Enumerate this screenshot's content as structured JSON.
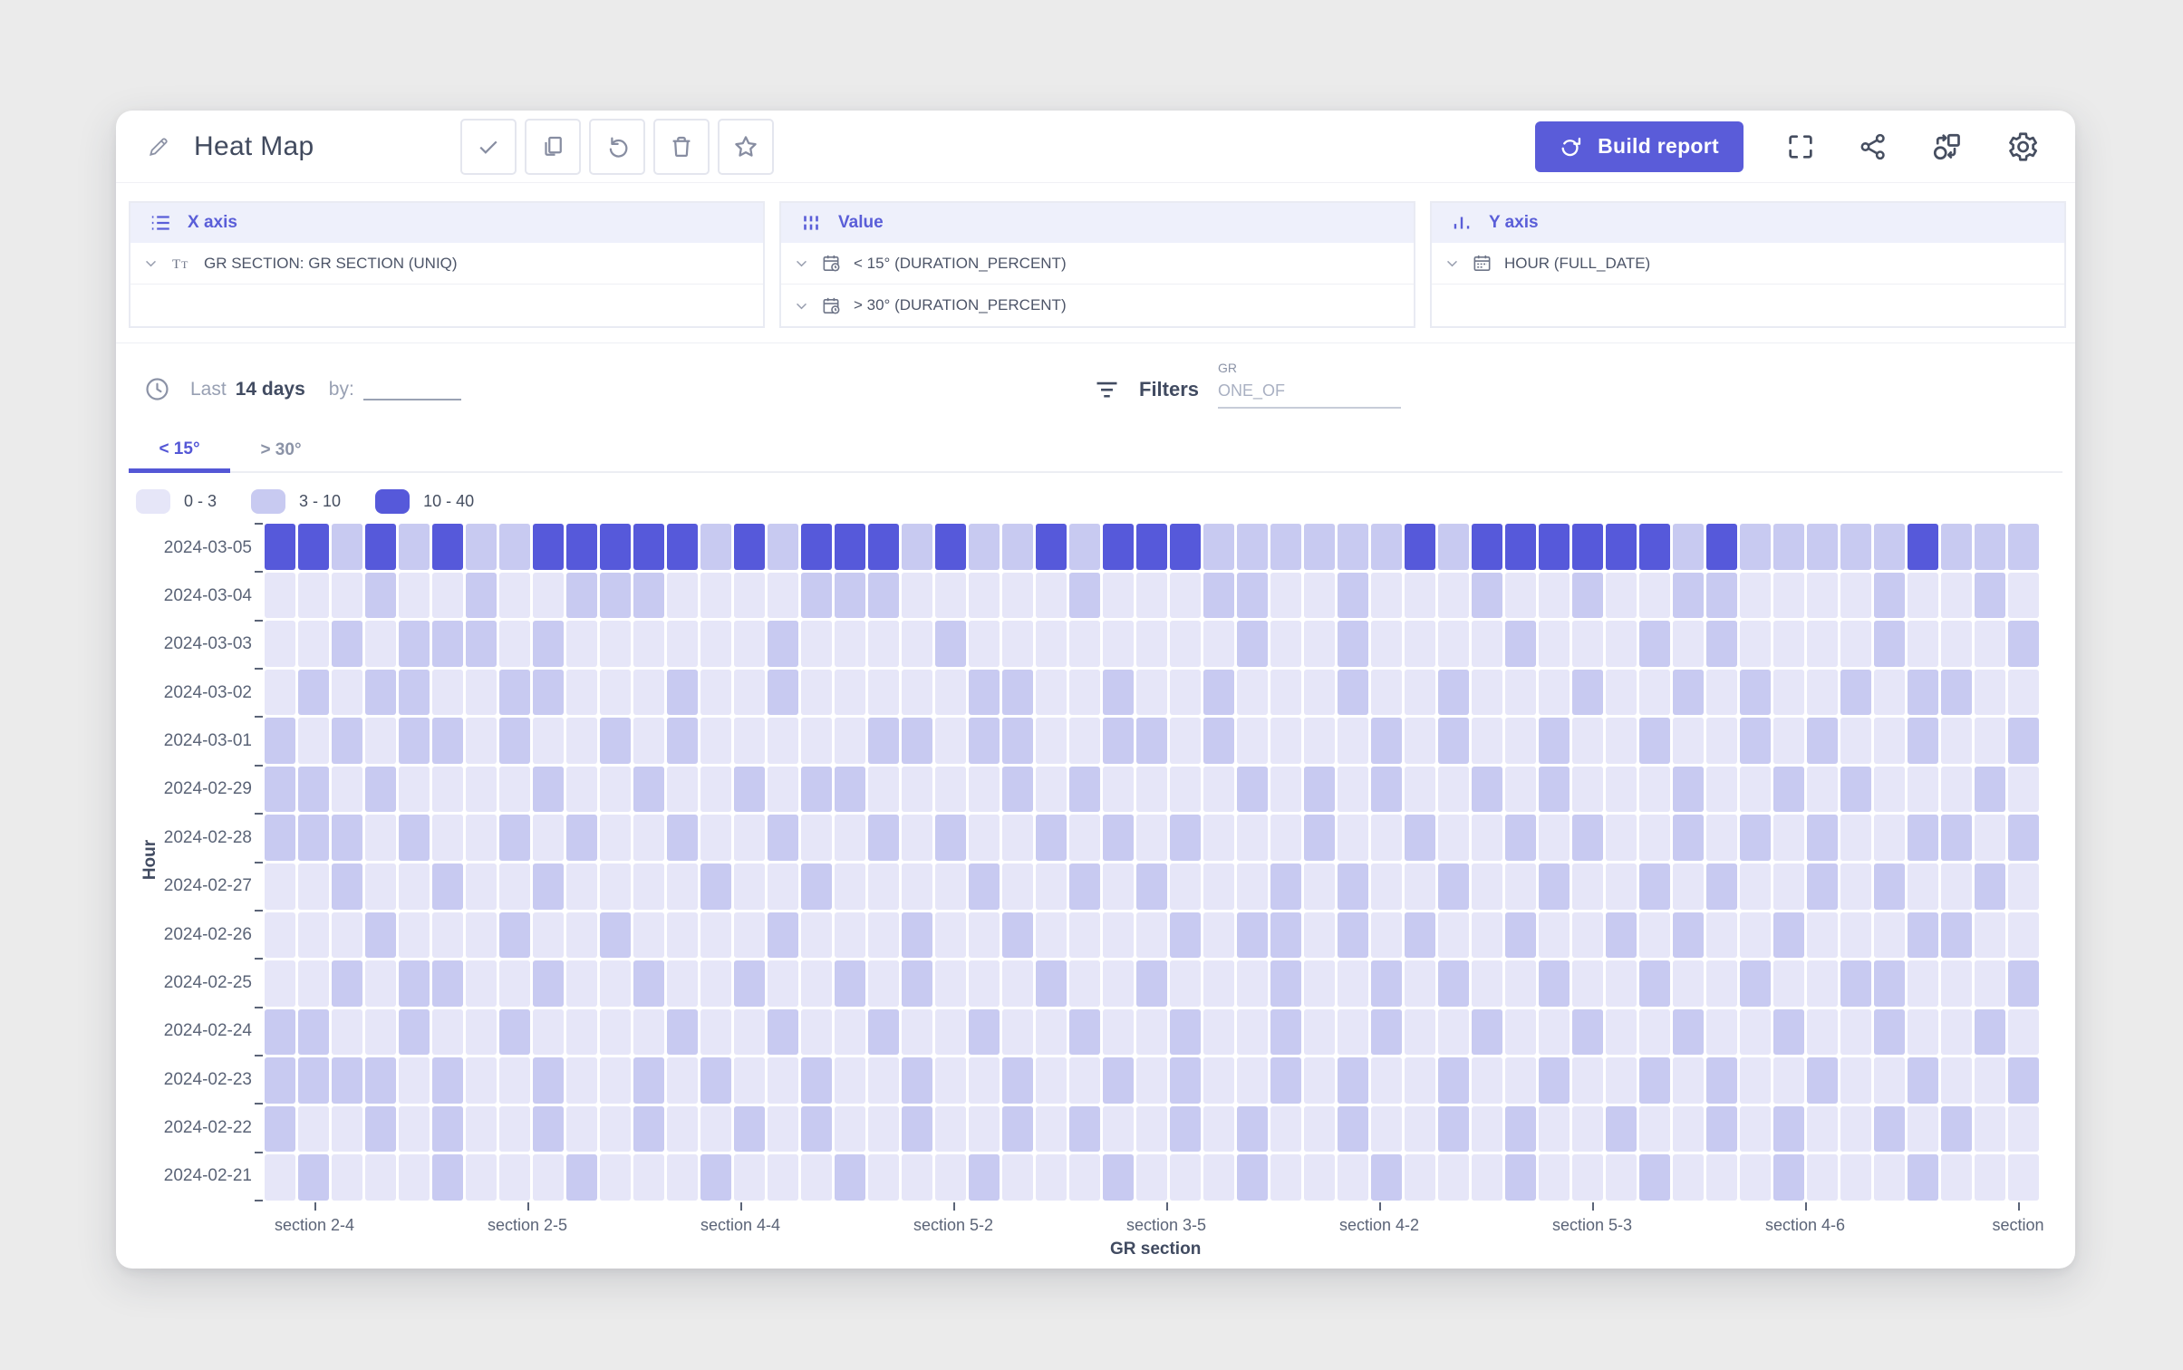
{
  "header": {
    "title": "Heat Map",
    "build_report_label": "Build report",
    "toolbar_icons": [
      "check-icon",
      "copy-icon",
      "undo-icon",
      "trash-icon",
      "star-icon"
    ],
    "right_icons": [
      "fullscreen-icon",
      "share-icon",
      "flow-icon",
      "gear-icon"
    ],
    "accent_color": "#5a5cd9"
  },
  "panels": {
    "x_axis": {
      "title": "X axis",
      "items": [
        {
          "label": "GR SECTION: GR SECTION (UNIQ)"
        }
      ]
    },
    "value": {
      "title": "Value",
      "items": [
        {
          "label": "< 15° (DURATION_PERCENT)"
        },
        {
          "label": "> 30° (DURATION_PERCENT)"
        }
      ]
    },
    "y_axis": {
      "title": "Y axis",
      "items": [
        {
          "label": "HOUR (FULL_DATE)"
        }
      ]
    }
  },
  "controls": {
    "period_prefix": "Last",
    "period_value": "14 days",
    "by_label": "by:",
    "filters_label": "Filters",
    "filter_field": {
      "label": "GR",
      "value": "ONE_OF"
    }
  },
  "tabs": [
    {
      "label": "< 15°",
      "active": true
    },
    {
      "label": "> 30°",
      "active": false
    }
  ],
  "chart_data": {
    "type": "heatmap",
    "title": "",
    "xlabel": "GR section",
    "ylabel": "Hour",
    "legend": [
      {
        "label": "0 - 3",
        "color": "#e6e6f8"
      },
      {
        "label": "3 - 10",
        "color": "#c8caf1"
      },
      {
        "label": "10 - 40",
        "color": "#5659da"
      }
    ],
    "x_tick_labels": [
      "section 2-4",
      "section 2-5",
      "section 4-4",
      "section 5-2",
      "section 3-5",
      "section 4-2",
      "section 5-3",
      "section 4-6",
      "section"
    ],
    "y_categories": [
      "2024-03-05",
      "2024-03-04",
      "2024-03-03",
      "2024-03-02",
      "2024-03-01",
      "2024-02-29",
      "2024-02-28",
      "2024-02-27",
      "2024-02-26",
      "2024-02-25",
      "2024-02-24",
      "2024-02-23",
      "2024-02-22",
      "2024-02-21"
    ],
    "columns": 53,
    "value_levels": {
      "0": "0 - 3",
      "1": "3 - 10",
      "2": "10 - 40"
    },
    "matrix": [
      "22121211222221212221211212221111112122222212111112111",
      "00010010011100001110000010001100100010010011000010010",
      "00101110100000010000100000000100100001000101000010001",
      "01011001100010010000011001001000100100010010100101100",
      "10101101001010000011011001101000010100100100101001001",
      "11010000100100101100001010000101010010100010010100010",
      "11101001010010010010100101010001001001010010101001101",
      "00100100100001001000010010100010100100100101001010010",
      "00010001001000010001001000010110101001001010010001100",
      "00101100100100100101000100100010010100100100100110001",
      "11001001000010010010010010010010010010010010010010010",
      "11110100100101001001001001010010100100100101001001001",
      "10010100100100101001001010010100100101001001010010100",
      "01000100010001000100010001000100010001000100010001000"
    ]
  }
}
